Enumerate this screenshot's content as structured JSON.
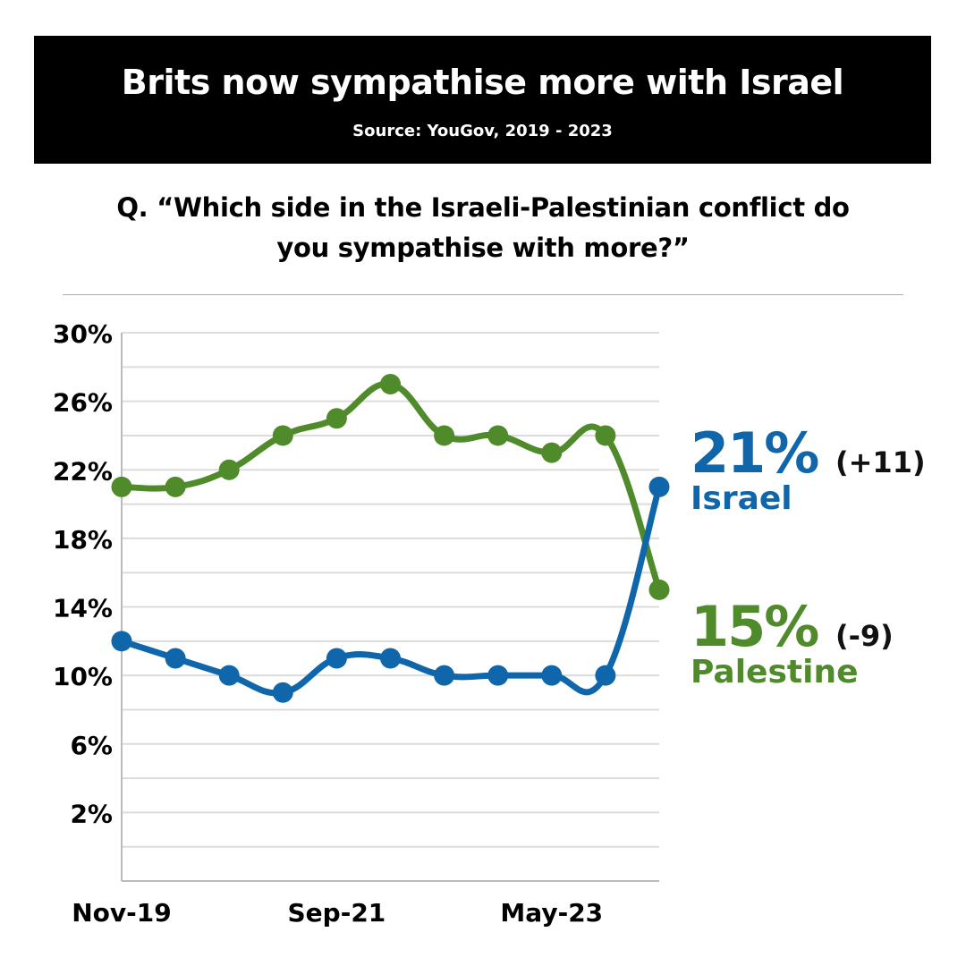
{
  "header": {
    "title": "Brits now sympathise more with Israel",
    "source": "Source: YouGov, 2019 - 2023"
  },
  "question": {
    "line1": "Q. “Which side in the Israeli-Palestinian conflict do",
    "line2": "you sympathise with more?”"
  },
  "colors": {
    "israel": "#1066ab",
    "palestine": "#4f8a2b",
    "grid": "#dcdcdc",
    "axis": "#bbbbbb"
  },
  "chart_data": {
    "type": "line",
    "x_labels": [
      "Nov-19",
      "Sep-21",
      "May-23"
    ],
    "x_label_points": [
      0,
      4,
      8
    ],
    "y_ticks": [
      "30%",
      "26%",
      "22%",
      "18%",
      "14%",
      "10%",
      "6%",
      "2%"
    ],
    "y_tick_values": [
      30,
      26,
      22,
      18,
      14,
      10,
      6,
      2
    ],
    "ylim": [
      -2,
      30
    ],
    "grid": true,
    "series": [
      {
        "name": "Palestine",
        "values": [
          21,
          21,
          22,
          24,
          25,
          27,
          24,
          24,
          23,
          24,
          15
        ],
        "end_value": "15%",
        "change": "(-9)"
      },
      {
        "name": "Israel",
        "values": [
          12,
          11,
          10,
          9,
          11,
          11,
          10,
          10,
          10,
          10,
          21
        ],
        "end_value": "21%",
        "change": "(+11)"
      }
    ]
  }
}
